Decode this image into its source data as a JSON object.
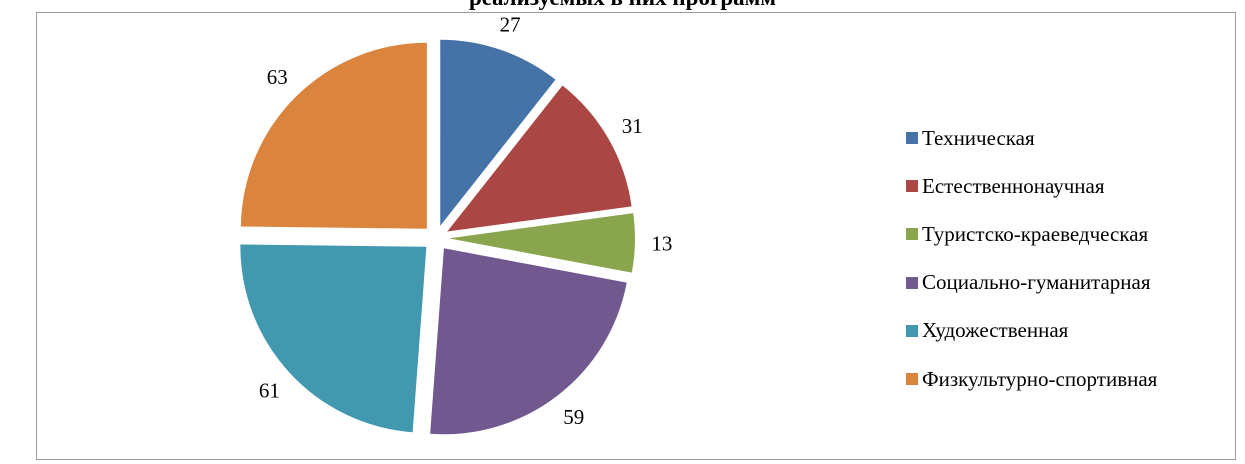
{
  "chart_data": {
    "type": "pie",
    "title": "реализуемых в них программ",
    "categories": [
      "Техническая",
      "Естественнонаучная",
      "Туристско-краеведческая",
      "Социально-гуманитарная",
      "Художественная",
      "Физкультурно-спортивная"
    ],
    "values": [
      27,
      31,
      13,
      59,
      61,
      63
    ],
    "data_labels": [
      "27",
      "31",
      "13",
      "59",
      "61",
      "63"
    ],
    "colors": [
      "#4572A7",
      "#AA4643",
      "#89A54E",
      "#71588F",
      "#4198AF",
      "#DB843D"
    ],
    "exploded": true,
    "legend_position": "right"
  }
}
